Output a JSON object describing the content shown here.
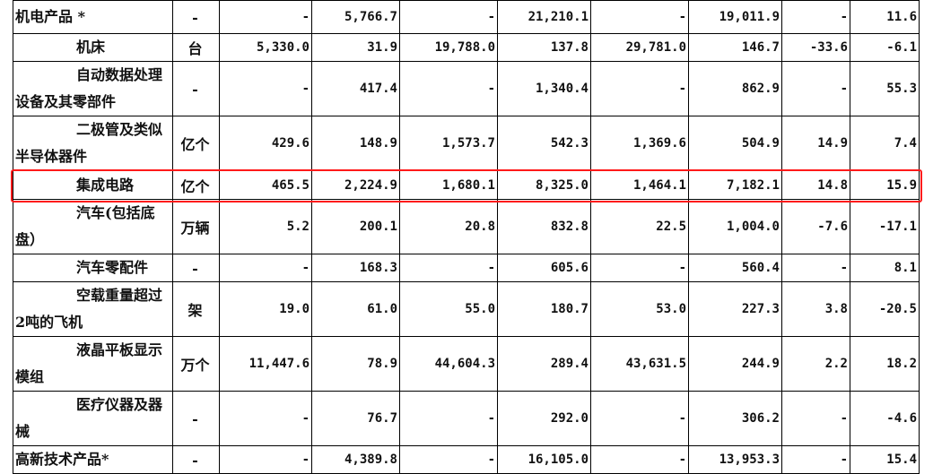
{
  "highlight_color": "#ff1a1a",
  "rows": [
    {
      "name": "机电产品 *",
      "unit": "-",
      "v": [
        "-",
        "5,766.7",
        "-",
        "21,210.1",
        "-",
        "19,011.9",
        "-",
        "11.6"
      ],
      "top": true
    },
    {
      "name": "机床",
      "unit": "台",
      "v": [
        "5,330.0",
        "31.9",
        "19,788.0",
        "137.8",
        "29,781.0",
        "146.7",
        "-33.6",
        "-6.1"
      ]
    },
    {
      "name": "自动数据处理设备及其零部件",
      "unit": "-",
      "v": [
        "-",
        "417.4",
        "-",
        "1,340.4",
        "-",
        "862.9",
        "-",
        "55.3"
      ]
    },
    {
      "name": "二极管及类似半导体器件",
      "unit": "亿个",
      "v": [
        "429.6",
        "148.9",
        "1,573.7",
        "542.3",
        "1,369.6",
        "504.9",
        "14.9",
        "7.4"
      ]
    },
    {
      "name": "集成电路",
      "unit": "亿个",
      "v": [
        "465.5",
        "2,224.9",
        "1,680.1",
        "8,325.0",
        "1,464.1",
        "7,182.1",
        "14.8",
        "15.9"
      ],
      "highlighted": true
    },
    {
      "name": "汽车(包括底盘）",
      "unit": "万辆",
      "v": [
        "5.2",
        "200.1",
        "20.8",
        "832.8",
        "22.5",
        "1,004.0",
        "-7.6",
        "-17.1"
      ]
    },
    {
      "name": "汽车零配件",
      "unit": "-",
      "v": [
        "-",
        "168.3",
        "-",
        "605.6",
        "-",
        "560.4",
        "-",
        "8.1"
      ]
    },
    {
      "name": "空载重量超过2吨的飞机",
      "unit": "架",
      "v": [
        "19.0",
        "61.0",
        "55.0",
        "180.7",
        "53.0",
        "227.3",
        "3.8",
        "-20.5"
      ]
    },
    {
      "name": "液晶平板显示模组",
      "unit": "万个",
      "v": [
        "11,447.6",
        "78.9",
        "44,604.3",
        "289.4",
        "43,631.5",
        "244.9",
        "2.2",
        "18.2"
      ]
    },
    {
      "name": "医疗仪器及器械",
      "unit": "-",
      "v": [
        "-",
        "76.7",
        "-",
        "292.0",
        "-",
        "306.2",
        "-",
        "-4.6"
      ]
    },
    {
      "name": "高新技术产品*",
      "unit": "-",
      "v": [
        "-",
        "4,389.8",
        "-",
        "16,105.0",
        "-",
        "13,953.3",
        "-",
        "15.4"
      ],
      "top": true
    }
  ]
}
